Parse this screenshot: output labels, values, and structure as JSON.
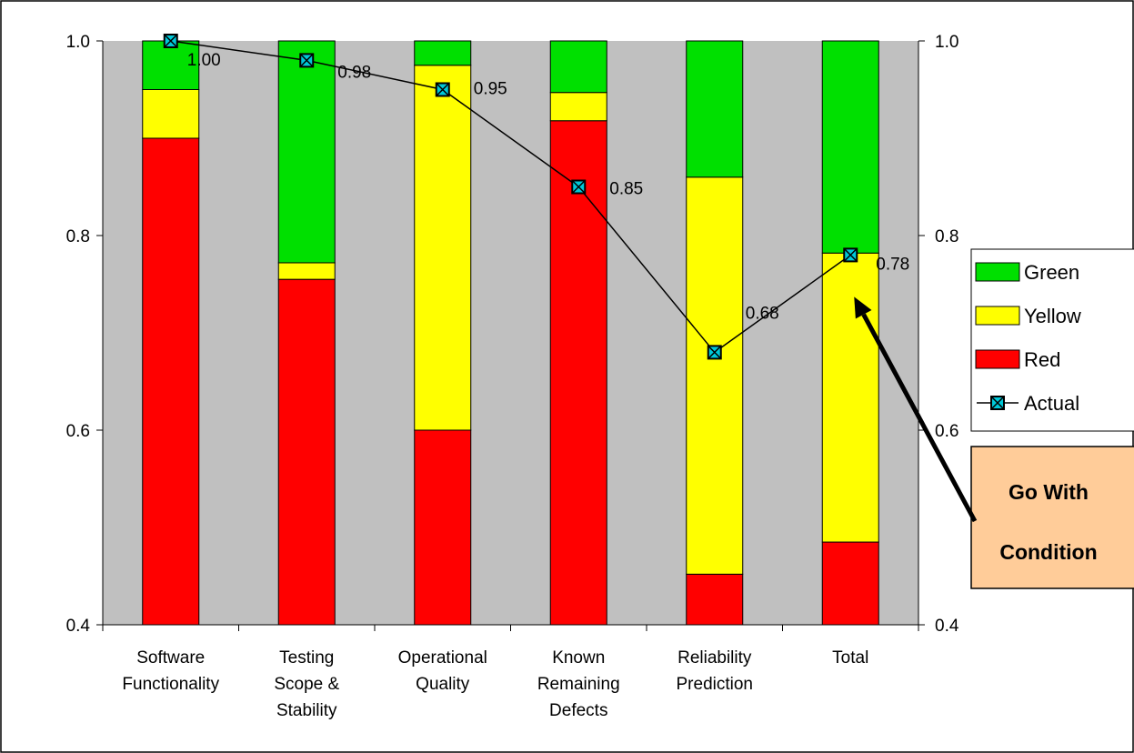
{
  "chart_data": {
    "type": "bar",
    "stacked": true,
    "categories": [
      [
        "Software",
        "Functionality"
      ],
      [
        "Testing",
        "Scope &",
        "Stability"
      ],
      [
        "Operational",
        "Quality"
      ],
      [
        "Known",
        "Remaining",
        "Defects"
      ],
      [
        "Reliability",
        "Prediction"
      ],
      [
        "Total"
      ]
    ],
    "ylim": [
      0.4,
      1.0
    ],
    "y_ticks": [
      "0.4",
      "0.6",
      "0.8",
      "1.0"
    ],
    "y_tick_values": [
      0.4,
      0.6,
      0.8,
      1.0
    ],
    "secondary_axis": true,
    "grid": false,
    "series": [
      {
        "name": "Red",
        "color": "#ff0000",
        "values": [
          0.9,
          0.755,
          0.6,
          0.918,
          0.452,
          0.485
        ]
      },
      {
        "name": "Yellow",
        "color": "#ffff00",
        "values": [
          0.05,
          0.017,
          0.375,
          0.029,
          0.408,
          0.297
        ]
      },
      {
        "name": "Green",
        "color": "#00e000",
        "values": [
          0.05,
          0.228,
          0.025,
          0.053,
          0.14,
          0.218
        ]
      }
    ],
    "line_series": {
      "name": "Actual",
      "values": [
        1.0,
        0.98,
        0.95,
        0.85,
        0.68,
        0.78
      ],
      "labels": [
        "1.00",
        "0.98",
        "0.95",
        "0.85",
        "0.68",
        "0.78"
      ],
      "marker_color": "#00c8d8",
      "line_color": "#000000"
    },
    "legend_order": [
      "Green",
      "Yellow",
      "Red",
      "Actual"
    ],
    "legend_position": "right",
    "plot_background": "#c0c0c0",
    "annotation": {
      "lines": [
        "Go With",
        "Condition"
      ],
      "background": "#ffcc99",
      "points_to": "Total"
    }
  }
}
